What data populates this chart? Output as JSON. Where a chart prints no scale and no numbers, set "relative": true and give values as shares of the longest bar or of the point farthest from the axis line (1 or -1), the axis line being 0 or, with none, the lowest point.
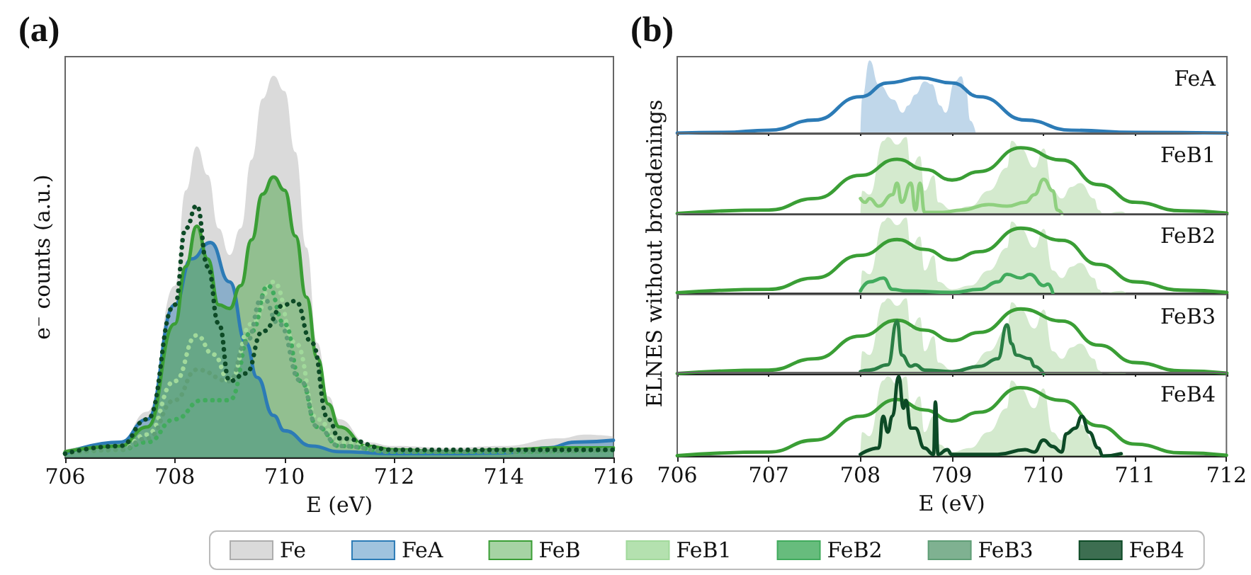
{
  "chart_data": [
    {
      "type": "area",
      "title": "(a)",
      "xlabel": "E (eV)",
      "ylabel": "e⁻ counts (a.u.)",
      "relative": true,
      "xlim": [
        706,
        716
      ],
      "xticks": [
        706,
        708,
        710,
        712,
        714,
        716
      ],
      "tick_labels": "x",
      "legend": "bottom",
      "marker": "none",
      "grid": false,
      "series": [
        {
          "name": "Fe",
          "type": "area",
          "color": "#adadad",
          "x": [
            706,
            707,
            707.5,
            708,
            708.2,
            708.4,
            708.6,
            708.8,
            709,
            709.2,
            709.4,
            709.6,
            709.8,
            710,
            710.2,
            710.4,
            710.6,
            710.8,
            711,
            711.5,
            712,
            713,
            714,
            715,
            715.5,
            716
          ],
          "values": [
            0.02,
            0.04,
            0.12,
            0.45,
            0.7,
            0.815,
            0.74,
            0.6,
            0.53,
            0.6,
            0.78,
            0.94,
            1.0,
            0.96,
            0.8,
            0.55,
            0.3,
            0.16,
            0.1,
            0.04,
            0.03,
            0.025,
            0.03,
            0.05,
            0.06,
            0.055
          ]
        },
        {
          "name": "FeA",
          "type": "area",
          "color": "#2c7bb6",
          "line_style": "solid",
          "x": [
            706,
            707,
            707.5,
            708,
            708.3,
            708.65,
            709,
            709.3,
            709.5,
            709.8,
            710,
            710.5,
            711,
            712,
            713,
            714,
            714.8,
            715.3,
            716
          ],
          "values": [
            0.01,
            0.04,
            0.1,
            0.4,
            0.52,
            0.563,
            0.46,
            0.3,
            0.21,
            0.11,
            0.07,
            0.03,
            0.015,
            0.01,
            0.01,
            0.012,
            0.025,
            0.04,
            0.045
          ]
        },
        {
          "name": "FeB",
          "type": "area",
          "color": "#3a9e35",
          "line_style": "solid",
          "x": [
            706,
            707,
            707.5,
            708,
            708.2,
            708.4,
            708.6,
            708.8,
            709,
            709.2,
            709.4,
            709.6,
            709.8,
            710,
            710.2,
            710.4,
            710.6,
            710.8,
            711,
            711.5,
            712,
            713,
            714,
            715,
            716
          ],
          "values": [
            0.015,
            0.03,
            0.08,
            0.35,
            0.5,
            0.606,
            0.52,
            0.4,
            0.39,
            0.45,
            0.57,
            0.69,
            0.735,
            0.7,
            0.58,
            0.42,
            0.26,
            0.14,
            0.08,
            0.03,
            0.02,
            0.015,
            0.02,
            0.025,
            0.025
          ]
        },
        {
          "name": "FeB1",
          "type": "line",
          "color": "#a1d99b",
          "line_style": "dotted",
          "x": [
            706,
            707,
            707.5,
            708,
            708.4,
            708.7,
            709,
            709.4,
            709.8,
            710.2,
            710.6,
            711,
            712,
            714,
            716
          ],
          "values": [
            0.01,
            0.02,
            0.06,
            0.2,
            0.32,
            0.27,
            0.2,
            0.35,
            0.46,
            0.3,
            0.1,
            0.04,
            0.015,
            0.015,
            0.02
          ]
        },
        {
          "name": "FeB2",
          "type": "line",
          "color": "#41ab5d",
          "line_style": "dotted",
          "x": [
            706,
            707,
            707.5,
            708,
            708.5,
            709,
            709.4,
            709.7,
            710,
            710.3,
            710.6,
            711,
            712,
            714,
            716
          ],
          "values": [
            0.01,
            0.02,
            0.04,
            0.1,
            0.15,
            0.15,
            0.33,
            0.45,
            0.35,
            0.2,
            0.08,
            0.03,
            0.015,
            0.015,
            0.02
          ]
        },
        {
          "name": "FeB3",
          "type": "line",
          "color": "#5f9e76",
          "line_style": "dotted",
          "x": [
            706,
            707,
            707.5,
            708,
            708.4,
            709,
            709.3,
            709.6,
            709.9,
            710.3,
            710.6,
            711,
            712,
            714,
            716
          ],
          "values": [
            0.01,
            0.02,
            0.05,
            0.15,
            0.23,
            0.2,
            0.3,
            0.42,
            0.35,
            0.2,
            0.08,
            0.03,
            0.015,
            0.015,
            0.02
          ]
        },
        {
          "name": "FeB4",
          "type": "line",
          "color": "#0d4a26",
          "line_style": "dotted",
          "x": [
            706,
            707,
            707.5,
            708,
            708.2,
            708.4,
            708.6,
            708.8,
            709,
            709.3,
            709.6,
            710,
            710.2,
            710.5,
            710.8,
            711,
            712,
            714,
            716
          ],
          "values": [
            0.01,
            0.03,
            0.1,
            0.4,
            0.6,
            0.66,
            0.5,
            0.35,
            0.2,
            0.22,
            0.33,
            0.4,
            0.41,
            0.3,
            0.1,
            0.05,
            0.02,
            0.02,
            0.02
          ]
        }
      ]
    },
    {
      "type": "area",
      "title": "(b)",
      "annotations": [
        "FeA"
      ],
      "relative": true,
      "xlim": [
        706,
        712
      ],
      "xticks": [
        706,
        707,
        708,
        709,
        710,
        711,
        712
      ],
      "tick_labels": false,
      "marker": "none",
      "grid": false,
      "series": [
        {
          "type": "area",
          "color": "#73a7d1",
          "x": [
            708,
            708.02,
            708.1,
            708.2,
            708.36,
            708.46,
            708.52,
            708.6,
            708.7,
            708.78,
            708.87,
            708.93,
            709.03,
            709.1,
            709.15,
            709.2,
            709.26
          ],
          "values": [
            0,
            0.5,
            1.0,
            0.67,
            0.46,
            0.28,
            0.38,
            0.53,
            0.71,
            0.67,
            0.38,
            0.28,
            0.71,
            0.78,
            0.6,
            0.17,
            0
          ]
        },
        {
          "type": "line",
          "color": "#2c7bb6",
          "line_style": "solid",
          "x": [
            706,
            706.5,
            707,
            707.5,
            708,
            708.3,
            708.65,
            709,
            709.3,
            709.8,
            710.3,
            711,
            712
          ],
          "values": [
            0,
            0.01,
            0.04,
            0.18,
            0.5,
            0.69,
            0.76,
            0.69,
            0.5,
            0.18,
            0.04,
            0.01,
            0
          ]
        }
      ]
    },
    {
      "type": "area",
      "annotations": [
        "FeB1"
      ],
      "relative": true,
      "xlim": [
        706,
        712
      ],
      "xticks": [
        706,
        707,
        708,
        709,
        710,
        711,
        712
      ],
      "tick_labels": false,
      "marker": "none",
      "grid": false,
      "series": [
        {
          "type": "area",
          "color": "#9fd193",
          "x": [
            708,
            708.02,
            708.1,
            708.25,
            708.3,
            708.4,
            708.5,
            708.55,
            708.65,
            708.7,
            708.8,
            708.85,
            709,
            709.2,
            709.4,
            709.6,
            709.65,
            709.75,
            709.9,
            710,
            710.1,
            710.2,
            710.3,
            710.4,
            710.55,
            710.6,
            710.65,
            710.85,
            710.9
          ],
          "values": [
            0,
            0.3,
            0.25,
            0.95,
            1.0,
            0.9,
            1.0,
            0.6,
            0.75,
            0.3,
            0.5,
            0.15,
            0.05,
            0.1,
            0.3,
            0.6,
            0.95,
            0.85,
            0.6,
            0.85,
            0.3,
            0.2,
            0.35,
            0.4,
            0.2,
            0.05,
            0,
            0.03,
            0
          ]
        },
        {
          "type": "line",
          "color": "#3a9e35",
          "line_style": "solid",
          "x": [
            706,
            707,
            707.5,
            708,
            708.4,
            708.7,
            709,
            709.3,
            709.75,
            710.2,
            710.6,
            711,
            711.5,
            712
          ],
          "values": [
            0.005,
            0.05,
            0.2,
            0.5,
            0.71,
            0.58,
            0.44,
            0.55,
            0.86,
            0.7,
            0.38,
            0.15,
            0.04,
            0.01
          ]
        },
        {
          "type": "line",
          "color": "#8fd07f",
          "line_style": "solid",
          "x": [
            708,
            708.05,
            708.1,
            708.2,
            708.35,
            708.4,
            708.45,
            708.55,
            708.6,
            708.65,
            708.7,
            708.9,
            709.1,
            709.4,
            709.6,
            709.8,
            709.9,
            710,
            710.1,
            710.15,
            710.2
          ],
          "values": [
            0.2,
            0.15,
            0.2,
            0.1,
            0.25,
            0.4,
            0.15,
            0.4,
            0.05,
            0.4,
            0.02,
            0.02,
            0.05,
            0.12,
            0.1,
            0.15,
            0.25,
            0.45,
            0.3,
            0.05,
            0
          ]
        }
      ]
    },
    {
      "type": "area",
      "annotations": [
        "FeB2"
      ],
      "ylabel": "ELNES without broadenings",
      "relative": true,
      "xlim": [
        706,
        712
      ],
      "xticks": [
        706,
        707,
        708,
        709,
        710,
        711,
        712
      ],
      "tick_labels": false,
      "marker": "none",
      "grid": false,
      "series": [
        {
          "type": "area",
          "color": "#9fd193",
          "x": [
            708,
            708.02,
            708.1,
            708.25,
            708.3,
            708.4,
            708.5,
            708.55,
            708.65,
            708.7,
            708.8,
            708.85,
            709,
            709.2,
            709.4,
            709.6,
            709.65,
            709.75,
            709.9,
            710,
            710.1,
            710.2,
            710.3,
            710.4,
            710.55,
            710.6,
            710.65,
            710.85,
            710.9
          ],
          "values": [
            0,
            0.3,
            0.25,
            0.95,
            1.0,
            0.9,
            1.0,
            0.6,
            0.75,
            0.3,
            0.5,
            0.15,
            0.05,
            0.1,
            0.3,
            0.6,
            0.95,
            0.85,
            0.6,
            0.85,
            0.3,
            0.2,
            0.35,
            0.4,
            0.2,
            0.05,
            0,
            0.03,
            0
          ]
        },
        {
          "type": "line",
          "color": "#3a9e35",
          "line_style": "solid",
          "x": [
            706,
            707,
            707.5,
            708,
            708.4,
            708.7,
            709,
            709.3,
            709.75,
            710.2,
            710.6,
            711,
            711.5,
            712
          ],
          "values": [
            0.005,
            0.05,
            0.2,
            0.5,
            0.71,
            0.58,
            0.44,
            0.55,
            0.86,
            0.7,
            0.38,
            0.15,
            0.04,
            0.01
          ]
        },
        {
          "type": "line",
          "color": "#41ab5d",
          "line_style": "solid",
          "x": [
            708,
            708.1,
            708.25,
            708.35,
            708.5,
            709,
            709.3,
            709.5,
            709.6,
            709.75,
            709.85,
            710,
            710.05,
            710.1
          ],
          "values": [
            0.03,
            0.15,
            0.2,
            0.05,
            0.03,
            0.01,
            0.05,
            0.15,
            0.25,
            0.2,
            0.25,
            0.1,
            0.12,
            0
          ]
        }
      ]
    },
    {
      "type": "area",
      "annotations": [
        "FeB3"
      ],
      "relative": true,
      "xlim": [
        706,
        712
      ],
      "xticks": [
        706,
        707,
        708,
        709,
        710,
        711,
        712
      ],
      "tick_labels": false,
      "marker": "none",
      "grid": false,
      "series": [
        {
          "type": "area",
          "color": "#9fd193",
          "x": [
            708,
            708.02,
            708.1,
            708.25,
            708.3,
            708.4,
            708.5,
            708.55,
            708.65,
            708.7,
            708.8,
            708.85,
            709,
            709.2,
            709.4,
            709.6,
            709.65,
            709.75,
            709.9,
            710,
            710.1,
            710.2,
            710.3,
            710.4,
            710.55,
            710.6,
            710.65,
            710.85,
            710.9
          ],
          "values": [
            0,
            0.3,
            0.25,
            0.95,
            1.0,
            0.9,
            1.0,
            0.6,
            0.75,
            0.3,
            0.5,
            0.15,
            0.05,
            0.1,
            0.3,
            0.6,
            0.95,
            0.85,
            0.6,
            0.85,
            0.3,
            0.2,
            0.35,
            0.4,
            0.2,
            0.05,
            0,
            0.03,
            0
          ]
        },
        {
          "type": "line",
          "color": "#3a9e35",
          "line_style": "solid",
          "x": [
            706,
            707,
            707.5,
            708,
            708.4,
            708.7,
            709,
            709.3,
            709.75,
            710.2,
            710.6,
            711,
            711.5,
            712
          ],
          "values": [
            0.005,
            0.05,
            0.2,
            0.5,
            0.71,
            0.58,
            0.44,
            0.55,
            0.86,
            0.7,
            0.38,
            0.15,
            0.04,
            0.01
          ]
        },
        {
          "type": "line",
          "color": "#2a7f45",
          "line_style": "solid",
          "x": [
            708,
            708.1,
            708.3,
            708.4,
            708.45,
            708.55,
            708.6,
            708.7,
            709,
            709.3,
            709.5,
            709.6,
            709.65,
            709.7,
            709.85,
            709.9,
            710
          ],
          "values": [
            0.03,
            0.05,
            0.12,
            0.7,
            0.25,
            0.1,
            0.12,
            0.05,
            0.03,
            0.1,
            0.2,
            0.65,
            0.4,
            0.25,
            0.2,
            0.1,
            0
          ]
        }
      ]
    },
    {
      "type": "area",
      "annotations": [
        "FeB4"
      ],
      "xlabel": "E (eV)",
      "relative": true,
      "xlim": [
        706,
        712
      ],
      "xticks": [
        706,
        707,
        708,
        709,
        710,
        711,
        712
      ],
      "tick_labels": "x",
      "marker": "none",
      "grid": false,
      "series": [
        {
          "type": "area",
          "color": "#9fd193",
          "x": [
            708,
            708.02,
            708.1,
            708.25,
            708.3,
            708.4,
            708.5,
            708.55,
            708.65,
            708.7,
            708.8,
            708.85,
            709,
            709.2,
            709.4,
            709.6,
            709.65,
            709.75,
            709.9,
            710,
            710.1,
            710.2,
            710.3,
            710.4,
            710.55,
            710.6,
            710.65,
            710.85,
            710.9
          ],
          "values": [
            0,
            0.3,
            0.25,
            0.95,
            1.0,
            0.9,
            1.0,
            0.6,
            0.75,
            0.3,
            0.5,
            0.15,
            0.05,
            0.1,
            0.3,
            0.6,
            0.95,
            0.85,
            0.6,
            0.85,
            0.3,
            0.2,
            0.35,
            0.4,
            0.2,
            0.05,
            0,
            0.03,
            0
          ]
        },
        {
          "type": "line",
          "color": "#3a9e35",
          "line_style": "solid",
          "x": [
            706,
            707,
            707.5,
            708,
            708.4,
            708.7,
            709,
            709.3,
            709.75,
            710.2,
            710.6,
            711,
            711.5,
            712
          ],
          "values": [
            0.005,
            0.05,
            0.2,
            0.5,
            0.71,
            0.58,
            0.44,
            0.55,
            0.86,
            0.7,
            0.38,
            0.15,
            0.04,
            0.01
          ]
        },
        {
          "type": "line",
          "color": "#0d4a26",
          "line_style": "solid",
          "x": [
            708,
            708.2,
            708.25,
            708.3,
            708.35,
            708.42,
            708.47,
            708.5,
            708.55,
            708.6,
            708.7,
            708.8,
            708.82,
            708.85,
            708.95,
            709,
            709.5,
            709.8,
            709.9,
            710,
            710.1,
            710.2,
            710.25,
            710.35,
            710.42,
            710.5,
            710.6,
            710.65,
            710.85
          ],
          "values": [
            0.02,
            0.1,
            0.5,
            0.3,
            0.5,
            1.0,
            0.6,
            0.7,
            0.35,
            0.35,
            0.1,
            0.02,
            0.68,
            0.02,
            0.08,
            0.02,
            0.02,
            0.08,
            0.05,
            0.2,
            0.12,
            0.05,
            0.28,
            0.35,
            0.5,
            0.3,
            0.1,
            0,
            0.03
          ]
        }
      ]
    }
  ]
}
